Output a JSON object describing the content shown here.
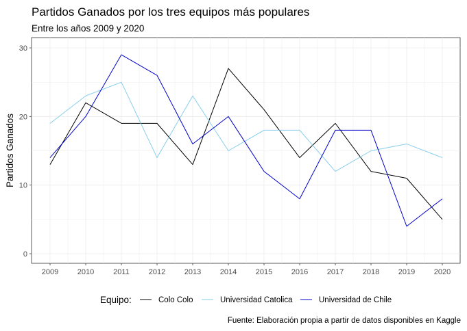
{
  "chart_data": {
    "type": "line",
    "title": "Partidos Ganados por los tres equipos más populares",
    "subtitle": "Entre los años 2009 y 2020",
    "xlabel": "",
    "ylabel": "Partidos Ganados",
    "caption": "Fuente: Elaboración propia a partir de datos disponibles en Kaggle",
    "x": [
      "2009",
      "2010",
      "2011",
      "2012",
      "2013",
      "2014",
      "2015",
      "2016",
      "2017",
      "2018",
      "2019",
      "2020"
    ],
    "ylim": [
      0,
      30
    ],
    "yticks": [
      "0",
      "10",
      "20",
      "30"
    ],
    "grid": true,
    "legend": {
      "title": "Equipo:",
      "position": "bottom"
    },
    "series": [
      {
        "name": "Colo Colo",
        "color": "#000000",
        "values": [
          13,
          22,
          19,
          19,
          13,
          27,
          21,
          14,
          19,
          12,
          11,
          5
        ]
      },
      {
        "name": "Universidad Catolica",
        "color": "#87ceeb",
        "values": [
          19,
          23,
          25,
          14,
          23,
          15,
          18,
          18,
          12,
          15,
          16,
          14
        ]
      },
      {
        "name": "Universidad de Chile",
        "color": "#0000cd",
        "values": [
          14,
          20,
          29,
          26,
          16,
          20,
          12,
          8,
          18,
          18,
          4,
          8
        ]
      }
    ]
  }
}
